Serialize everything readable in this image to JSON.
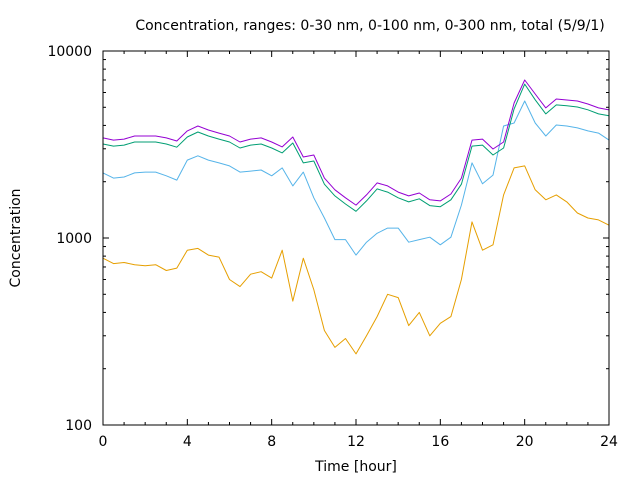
{
  "chart_data": {
    "type": "line",
    "title": "Concentration, ranges: 0-30 nm, 0-100 nm, 0-300 nm, total (5/9/1)",
    "xlabel": "Time [hour]",
    "ylabel": "Concentration",
    "xlim": [
      0,
      24
    ],
    "ylim": [
      100,
      10000
    ],
    "yscale": "log",
    "grid": false,
    "legend": "none",
    "x_ticks": [
      0,
      4,
      8,
      12,
      16,
      20,
      24
    ],
    "x_tick_labels": [
      "0",
      "4",
      "8",
      "12",
      "16",
      "20",
      "24"
    ],
    "y_ticks": [
      100,
      1000,
      10000
    ],
    "y_tick_labels": [
      "100",
      "1000",
      "10000"
    ],
    "x": [
      0,
      0.5,
      1,
      1.5,
      2,
      2.5,
      3,
      3.5,
      4,
      4.5,
      5,
      5.5,
      6,
      6.5,
      7,
      7.5,
      8,
      8.5,
      9,
      9.5,
      10,
      10.5,
      11,
      11.5,
      12,
      12.5,
      13,
      13.5,
      14,
      14.5,
      15,
      15.5,
      16,
      16.5,
      17,
      17.5,
      18,
      18.5,
      19,
      19.5,
      20,
      20.5,
      21,
      21.5,
      22,
      22.5,
      23,
      23.5,
      24
    ],
    "series": [
      {
        "name": "total",
        "color": "#9400d3",
        "values": [
          3430,
          3340,
          3380,
          3510,
          3510,
          3510,
          3430,
          3300,
          3740,
          3970,
          3780,
          3640,
          3510,
          3260,
          3380,
          3430,
          3260,
          3070,
          3470,
          2710,
          2780,
          2090,
          1810,
          1640,
          1500,
          1700,
          1970,
          1900,
          1760,
          1680,
          1740,
          1600,
          1580,
          1720,
          2090,
          3340,
          3380,
          2990,
          3260,
          5270,
          7000,
          5890,
          4960,
          5540,
          5470,
          5400,
          5210,
          4960,
          4840
        ]
      },
      {
        "name": "0-300 nm",
        "color": "#009e73",
        "values": [
          3180,
          3100,
          3140,
          3260,
          3260,
          3260,
          3180,
          3060,
          3470,
          3690,
          3510,
          3380,
          3260,
          3030,
          3140,
          3180,
          3030,
          2850,
          3220,
          2520,
          2580,
          1940,
          1680,
          1520,
          1390,
          1580,
          1830,
          1760,
          1640,
          1560,
          1620,
          1490,
          1470,
          1600,
          1940,
          3100,
          3140,
          2780,
          3030,
          4900,
          6650,
          5480,
          4610,
          5150,
          5090,
          5020,
          4850,
          4610,
          4500
        ]
      },
      {
        "name": "0-100 nm",
        "color": "#56b4e9",
        "values": [
          2230,
          2090,
          2120,
          2230,
          2250,
          2250,
          2150,
          2040,
          2610,
          2750,
          2610,
          2520,
          2430,
          2250,
          2280,
          2310,
          2150,
          2370,
          1900,
          2250,
          1640,
          1280,
          980,
          980,
          810,
          950,
          1060,
          1130,
          1130,
          950,
          980,
          1010,
          920,
          1010,
          1500,
          2520,
          1950,
          2170,
          3970,
          4120,
          5400,
          4120,
          3510,
          4020,
          3970,
          3880,
          3740,
          3640,
          3340
        ]
      },
      {
        "name": "0-30 nm",
        "color": "#e69f00",
        "values": [
          780,
          730,
          740,
          720,
          710,
          720,
          670,
          690,
          860,
          880,
          810,
          790,
          600,
          550,
          640,
          660,
          610,
          860,
          460,
          780,
          530,
          320,
          260,
          290,
          240,
          300,
          380,
          500,
          480,
          340,
          400,
          300,
          350,
          380,
          600,
          1220,
          860,
          920,
          1700,
          2370,
          2430,
          1810,
          1600,
          1700,
          1560,
          1360,
          1280,
          1250,
          1170
        ]
      }
    ]
  }
}
